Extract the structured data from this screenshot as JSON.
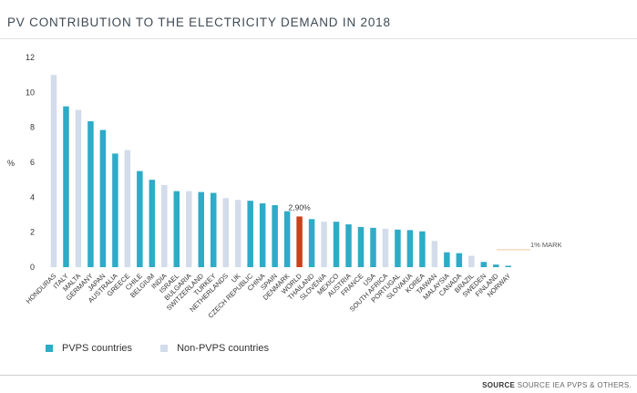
{
  "title": "PV CONTRIBUTION TO THE ELECTRICITY DEMAND IN 2018",
  "legend": {
    "pvps_label": "PVPS countries",
    "non_pvps_label": "Non-PVPS countries"
  },
  "source": {
    "prefix": "SOURCE",
    "text": "SOURCE IEA PVPS & OTHERS."
  },
  "colors": {
    "pvps": "#2eabc7",
    "non_pvps": "#d3dcea",
    "world": "#c9431c",
    "mark": "#f0c8a0",
    "text": "#333333"
  },
  "chart_data": {
    "type": "bar",
    "ylabel": "%",
    "ylim": [
      0,
      12
    ],
    "yticks": [
      0,
      2,
      4,
      6,
      8,
      10,
      12
    ],
    "grid": false,
    "legend_position": "bottom-left",
    "categories": [
      "HONDURAS",
      "ITALY",
      "MALTA",
      "GERMANY",
      "JAPAN",
      "AUSTRALIA",
      "GREECE",
      "CHILE",
      "BELGIUM",
      "INDIA",
      "ISRAEL",
      "BULGARIA",
      "SWITZERLAND",
      "TURKEY",
      "NETHERLANDS",
      "UK",
      "CZECH REPUBLIC",
      "CHINA",
      "SPAIN",
      "DENMARK",
      "WORLD",
      "THAILAND",
      "SLOVENIA",
      "MEXICO",
      "AUSTRIA",
      "FRANCE",
      "USA",
      "SOUTH AFRICA",
      "PORTUGAL",
      "SLOVAKIA",
      "KOREA",
      "TAIWAN",
      "MALAYSIA",
      "CANADA",
      "BRAZIL",
      "SWEDEN",
      "FINLAND",
      "NORWAY"
    ],
    "values": [
      11.0,
      9.2,
      9.0,
      8.35,
      7.85,
      6.5,
      6.7,
      5.5,
      5.0,
      4.7,
      4.35,
      4.35,
      4.3,
      4.25,
      3.95,
      3.85,
      3.8,
      3.65,
      3.55,
      3.2,
      2.9,
      2.75,
      2.6,
      2.6,
      2.45,
      2.3,
      2.25,
      2.2,
      2.15,
      2.12,
      2.05,
      1.5,
      0.85,
      0.8,
      0.65,
      0.3,
      0.15,
      0.08
    ],
    "groups": [
      "non",
      "pvps",
      "non",
      "pvps",
      "pvps",
      "pvps",
      "non",
      "pvps",
      "pvps",
      "non",
      "pvps",
      "non",
      "pvps",
      "pvps",
      "non",
      "non",
      "pvps",
      "pvps",
      "pvps",
      "pvps",
      "world",
      "pvps",
      "non",
      "pvps",
      "pvps",
      "pvps",
      "pvps",
      "non",
      "pvps",
      "pvps",
      "pvps",
      "non",
      "pvps",
      "pvps",
      "non",
      "pvps",
      "pvps",
      "pvps"
    ],
    "series": [
      {
        "name": "PVPS countries",
        "group": "pvps"
      },
      {
        "name": "Non-PVPS countries",
        "group": "non"
      }
    ],
    "annotations": [
      {
        "text": "2,90%",
        "category": "WORLD",
        "value": 2.9
      }
    ],
    "reference_lines": [
      {
        "label": "1% MARK",
        "value": 1
      }
    ]
  }
}
